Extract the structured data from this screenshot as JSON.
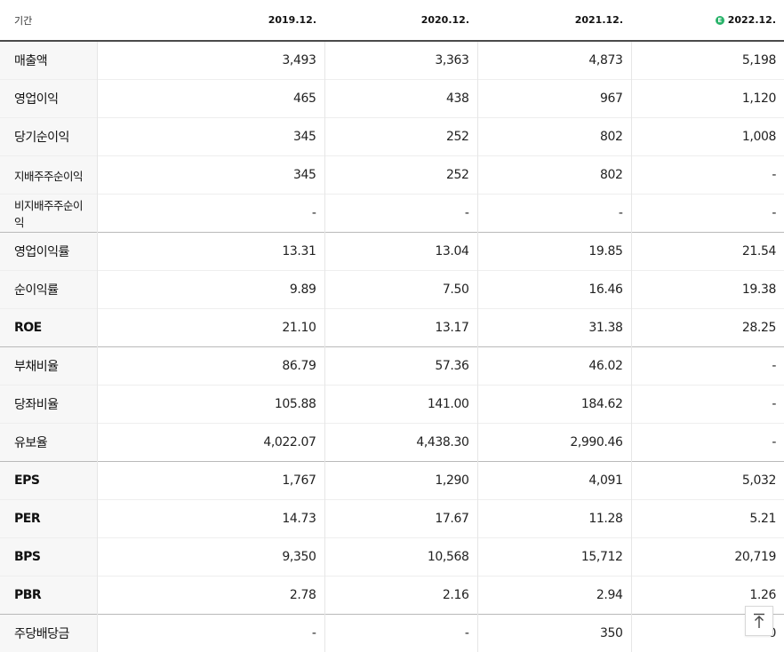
{
  "header": {
    "period_label": "기간",
    "columns": [
      "2019.12.",
      "2020.12.",
      "2021.12.",
      "2022.12."
    ],
    "estimate_icon": "Ⓔ"
  },
  "rows": [
    {
      "label": "매출액",
      "values": [
        "3,493",
        "3,363",
        "4,873",
        "5,198"
      ]
    },
    {
      "label": "영업이익",
      "values": [
        "465",
        "438",
        "967",
        "1,120"
      ]
    },
    {
      "label": "당기순이익",
      "values": [
        "345",
        "252",
        "802",
        "1,008"
      ]
    },
    {
      "label": "지배주주순이익",
      "values": [
        "345",
        "252",
        "802",
        "-"
      ]
    },
    {
      "label": "비지배주주순이익",
      "values": [
        "-",
        "-",
        "-",
        "-"
      ]
    },
    {
      "label": "영업이익률",
      "values": [
        "13.31",
        "13.04",
        "19.85",
        "21.54"
      ]
    },
    {
      "label": "순이익률",
      "values": [
        "9.89",
        "7.50",
        "16.46",
        "19.38"
      ]
    },
    {
      "label": "ROE",
      "values": [
        "21.10",
        "13.17",
        "31.38",
        "28.25"
      ]
    },
    {
      "label": "부채비율",
      "values": [
        "86.79",
        "57.36",
        "46.02",
        "-"
      ]
    },
    {
      "label": "당좌비율",
      "values": [
        "105.88",
        "141.00",
        "184.62",
        "-"
      ]
    },
    {
      "label": "유보율",
      "values": [
        "4,022.07",
        "4,438.30",
        "2,990.46",
        "-"
      ]
    },
    {
      "label": "EPS",
      "values": [
        "1,767",
        "1,290",
        "4,091",
        "5,032"
      ]
    },
    {
      "label": "PER",
      "values": [
        "14.73",
        "17.67",
        "11.28",
        "5.21"
      ]
    },
    {
      "label": "BPS",
      "values": [
        "9,350",
        "10,568",
        "15,712",
        "20,719"
      ]
    },
    {
      "label": "PBR",
      "values": [
        "2.78",
        "2.16",
        "2.94",
        "1.26"
      ]
    },
    {
      "label": "주당배당금",
      "values": [
        "-",
        "-",
        "350",
        "0"
      ]
    }
  ],
  "scroll_top_icon": "arrow-up-to-top"
}
